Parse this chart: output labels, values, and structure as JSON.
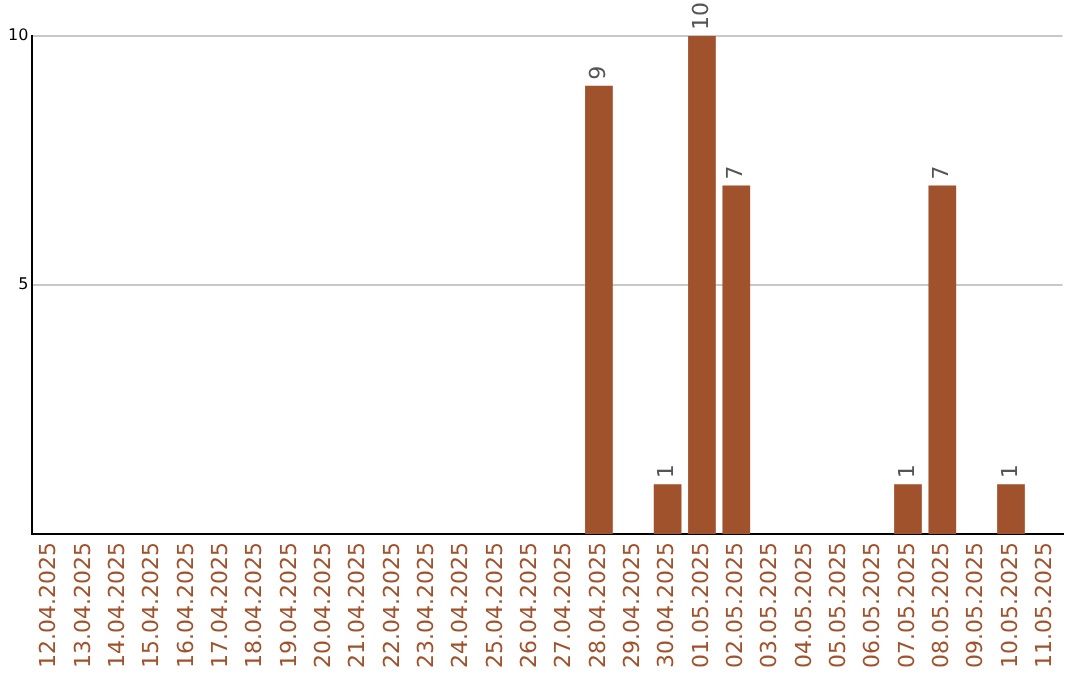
{
  "chart_data": {
    "type": "bar",
    "categories": [
      "12.04.2025",
      "13.04.2025",
      "14.04.2025",
      "15.04.2025",
      "16.04.2025",
      "17.04.2025",
      "18.04.2025",
      "19.04.2025",
      "20.04.2025",
      "21.04.2025",
      "22.04.2025",
      "23.04.2025",
      "24.04.2025",
      "25.04.2025",
      "26.04.2025",
      "27.04.2025",
      "28.04.2025",
      "29.04.2025",
      "30.04.2025",
      "01.05.2025",
      "02.05.2025",
      "03.05.2025",
      "04.05.2025",
      "05.05.2025",
      "06.05.2025",
      "07.05.2025",
      "08.05.2025",
      "09.05.2025",
      "10.05.2025",
      "11.05.2025"
    ],
    "values": [
      0,
      0,
      0,
      0,
      0,
      0,
      0,
      0,
      0,
      0,
      0,
      0,
      0,
      0,
      0,
      0,
      9,
      0,
      1,
      10,
      7,
      0,
      0,
      0,
      0,
      1,
      7,
      0,
      1,
      0
    ],
    "value_labels": [
      null,
      null,
      null,
      null,
      null,
      null,
      null,
      null,
      null,
      null,
      null,
      null,
      null,
      null,
      null,
      null,
      "9",
      null,
      "1",
      "10",
      "7",
      null,
      null,
      null,
      null,
      "1",
      "7",
      null,
      "1",
      null
    ],
    "color": "#a0522d",
    "ylim": [
      0,
      10
    ],
    "yticks": [
      5,
      10
    ],
    "grid": "y",
    "legend": false
  }
}
